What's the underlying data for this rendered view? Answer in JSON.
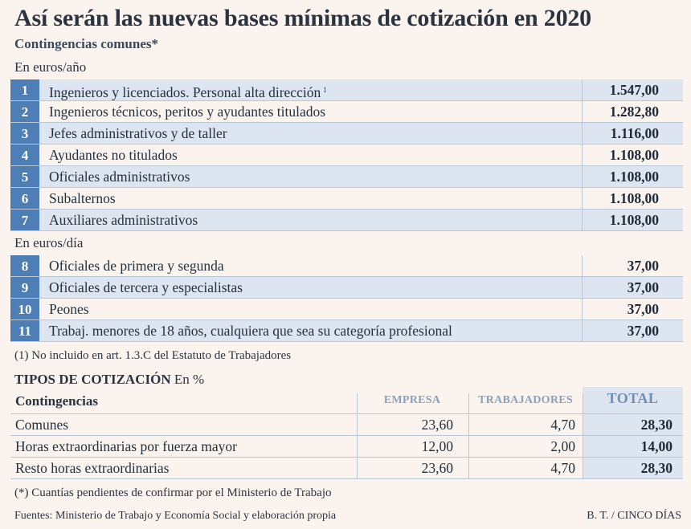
{
  "title": "Así serán las nuevas bases mínimas de cotización en 2020",
  "subtitle": "Contingencias comunes*",
  "section_year": {
    "unit_label": "En euros/año",
    "rows": [
      {
        "num": "1",
        "label": "Ingenieros y licenciados. Personal alta dirección",
        "sup": "1",
        "value": "1.547,00"
      },
      {
        "num": "2",
        "label": "Ingenieros técnicos, peritos y ayudantes titulados",
        "sup": "",
        "value": "1.282,80"
      },
      {
        "num": "3",
        "label": "Jefes administrativos y de taller",
        "sup": "",
        "value": "1.116,00"
      },
      {
        "num": "4",
        "label": "Ayudantes no titulados",
        "sup": "",
        "value": "1.108,00"
      },
      {
        "num": "5",
        "label": "Oficiales administrativos",
        "sup": "",
        "value": "1.108,00"
      },
      {
        "num": "6",
        "label": "Subalternos",
        "sup": "",
        "value": "1.108,00"
      },
      {
        "num": "7",
        "label": "Auxiliares administrativos",
        "sup": "",
        "value": "1.108,00"
      }
    ]
  },
  "section_day": {
    "unit_label": "En euros/día",
    "rows": [
      {
        "num": "8",
        "label": "Oficiales de primera y segunda",
        "value": "37,00"
      },
      {
        "num": "9",
        "label": "Oficiales de tercera y especialistas",
        "value": "37,00"
      },
      {
        "num": "10",
        "label": "Peones",
        "value": "37,00"
      },
      {
        "num": "11",
        "label": "Trabaj. menores de 18 años, cualquiera que sea su categoría profesional",
        "value": "37,00"
      }
    ]
  },
  "footnote_1": "(1) No incluido en art. 1.3.C  del Estatuto de Trabajadores",
  "tipos": {
    "title_bold": "TIPOS DE COTIZACIÓN",
    "title_unit": "En %",
    "headers": {
      "contingencias": "Contingencias",
      "empresa": "EMPRESA",
      "trabajadores": "TRABAJADORES",
      "total": "TOTAL"
    },
    "rows": [
      {
        "label": "Comunes",
        "empresa": "23,60",
        "trabajadores": "4,70",
        "total": "28,30"
      },
      {
        "label": "Horas extraordinarias por fuerza mayor",
        "empresa": "12,00",
        "trabajadores": "2,00",
        "total": "14,00"
      },
      {
        "label": "Resto horas extraordinarias",
        "empresa": "23,60",
        "trabajadores": "4,70",
        "total": "28,30"
      }
    ]
  },
  "footnote_star": "(*) Cuantías pendientes de confirmar por el Ministerio de Trabajo",
  "source": "Fuentes: Ministerio de Trabajo y Economía Social y elaboración propia",
  "credit": "B. T. / CINCO DÍAS",
  "colors": {
    "background": "#fbf3ee",
    "number_box": "#4d7fb6",
    "row_shade": "#dde5f1",
    "header_muted": "#8aa1bd"
  }
}
